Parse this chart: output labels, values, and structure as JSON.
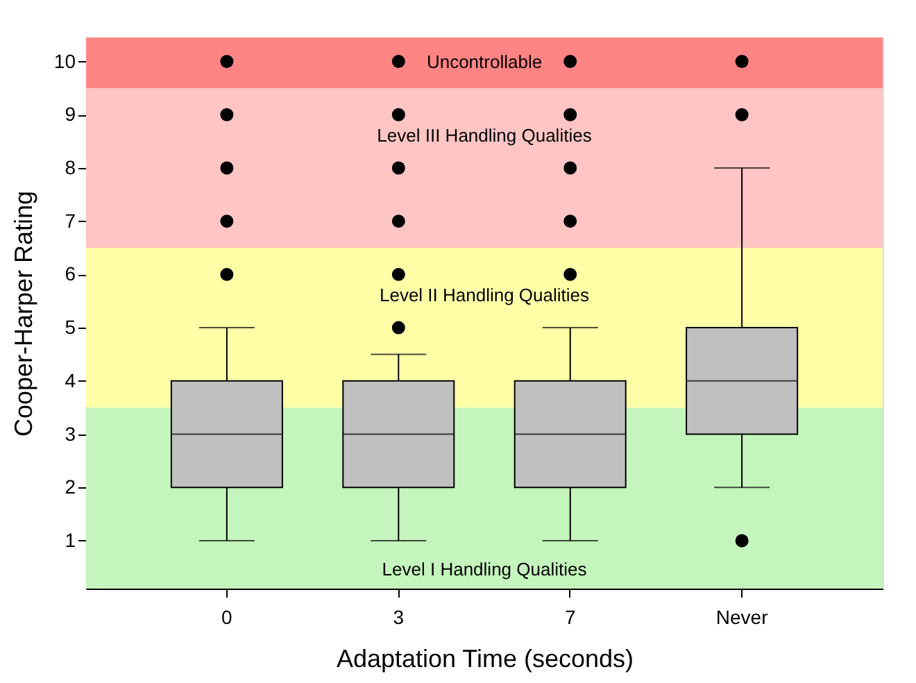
{
  "chart_data": {
    "type": "box",
    "xlabel": "Adaptation Time (seconds)",
    "ylabel": "Cooper-Harper Rating",
    "categories": [
      "0",
      "3",
      "7",
      "Never"
    ],
    "series": [
      {
        "color": "#c0c0c0",
        "boxes": [
          {
            "low": 1,
            "q1": 2,
            "median": 3,
            "q3": 4,
            "high": 5,
            "outliers": [
              6,
              7,
              8,
              9,
              10
            ]
          },
          {
            "low": 1,
            "q1": 2,
            "median": 3,
            "q3": 4,
            "high": 4.5,
            "outliers": [
              5,
              6,
              7,
              8,
              9,
              10
            ]
          },
          {
            "low": 1,
            "q1": 2,
            "median": 3,
            "q3": 4,
            "high": 5,
            "outliers": [
              6,
              7,
              8,
              9,
              10
            ]
          },
          {
            "low": 2,
            "q1": 3,
            "median": 4,
            "q3": 5,
            "high": 8,
            "outliers": [
              1,
              9,
              10
            ]
          }
        ]
      }
    ],
    "ylim": [
      0.1,
      10.45
    ],
    "yticks": [
      1,
      2,
      3,
      4,
      5,
      6,
      7,
      8,
      9,
      10
    ],
    "marker": "circle",
    "bands": [
      {
        "axis": "y",
        "from": 0.1,
        "to": 3.5,
        "color": "#c4f5bc",
        "label": "Level I Handling Qualities"
      },
      {
        "axis": "y",
        "from": 3.5,
        "to": 6.5,
        "color": "#ffffa8",
        "label": "Level II Handling Qualities"
      },
      {
        "axis": "y",
        "from": 6.5,
        "to": 9.5,
        "color": "#ffc4c4",
        "label": "Level III Handling Qualities"
      },
      {
        "axis": "y",
        "from": 9.5,
        "to": 10.45,
        "color": "#ff8484",
        "label": "Uncontrollable"
      }
    ]
  }
}
